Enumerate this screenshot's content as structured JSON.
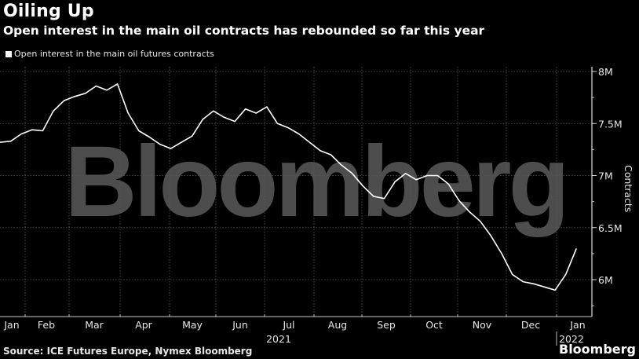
{
  "header": {
    "title": "Oiling Up",
    "subtitle": "Open interest in the main oil contracts has rebounded so far this year"
  },
  "legend": {
    "label": "Open interest in the main oil futures contracts"
  },
  "footer": {
    "source": "Source: ICE Futures Europe, Nymex Bloomberg",
    "brand": "Bloomberg",
    "watermark": "Bloomberg"
  },
  "axis": {
    "y_label": "Contracts",
    "y_ticks": [
      "8M",
      "7.5M",
      "7M",
      "6.5M",
      "6M"
    ],
    "x_ticks": [
      "Jan",
      "Feb",
      "Mar",
      "Apr",
      "May",
      "Jun",
      "Jul",
      "Aug",
      "Sep",
      "Oct",
      "Nov",
      "Dec",
      "Jan"
    ],
    "x_year_labels": [
      "2021",
      "2022"
    ]
  },
  "colors": {
    "background": "#000000",
    "line": "#ffffff",
    "grid": "#555555",
    "watermark": "#4d4d4d"
  },
  "chart_data": {
    "type": "line",
    "title": "Oiling Up",
    "subtitle": "Open interest in the main oil contracts has rebounded so far this year",
    "xlabel": "",
    "ylabel": "Contracts",
    "ylim": [
      5800000,
      8000000
    ],
    "grid": true,
    "legend_position": "top-left",
    "series": [
      {
        "name": "Open interest in the main oil futures contracts",
        "x": [
          "2021-01-01",
          "2021-01-08",
          "2021-01-15",
          "2021-01-22",
          "2021-01-29",
          "2021-02-05",
          "2021-02-12",
          "2021-02-19",
          "2021-02-26",
          "2021-03-05",
          "2021-03-12",
          "2021-03-19",
          "2021-03-26",
          "2021-04-02",
          "2021-04-09",
          "2021-04-16",
          "2021-04-23",
          "2021-04-30",
          "2021-05-07",
          "2021-05-14",
          "2021-05-21",
          "2021-05-28",
          "2021-06-04",
          "2021-06-11",
          "2021-06-18",
          "2021-06-25",
          "2021-07-02",
          "2021-07-09",
          "2021-07-16",
          "2021-07-23",
          "2021-07-30",
          "2021-08-06",
          "2021-08-13",
          "2021-08-20",
          "2021-08-27",
          "2021-09-03",
          "2021-09-10",
          "2021-09-17",
          "2021-09-24",
          "2021-10-01",
          "2021-10-08",
          "2021-10-15",
          "2021-10-22",
          "2021-10-29",
          "2021-11-05",
          "2021-11-12",
          "2021-11-19",
          "2021-11-26",
          "2021-12-03",
          "2021-12-10",
          "2021-12-17",
          "2021-12-24",
          "2021-12-31",
          "2022-01-07",
          "2022-01-14"
        ],
        "values": [
          7320000,
          7330000,
          7400000,
          7440000,
          7430000,
          7620000,
          7720000,
          7760000,
          7790000,
          7860000,
          7820000,
          7880000,
          7600000,
          7430000,
          7370000,
          7300000,
          7260000,
          7320000,
          7380000,
          7540000,
          7620000,
          7560000,
          7520000,
          7640000,
          7600000,
          7660000,
          7500000,
          7460000,
          7400000,
          7320000,
          7240000,
          7200000,
          7100000,
          7020000,
          6900000,
          6800000,
          6780000,
          6940000,
          7020000,
          6960000,
          7000000,
          7000000,
          6920000,
          6760000,
          6650000,
          6560000,
          6420000,
          6250000,
          6050000,
          5980000,
          5960000,
          5930000,
          5900000,
          6050000,
          6300000
        ]
      }
    ]
  }
}
